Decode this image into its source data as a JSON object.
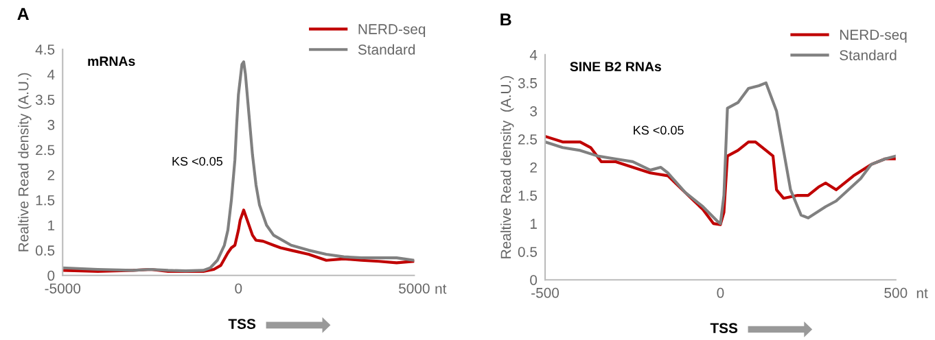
{
  "chart_data": [
    {
      "type": "line",
      "title": "mRNAs",
      "xlabel": "nt",
      "ylabel": "Realtive Read density (A.U.)",
      "annotations": [
        "A",
        "KS <0.05",
        "TSS"
      ],
      "xlim": [
        -5000,
        5000
      ],
      "xticks": [
        -5000,
        0,
        5000
      ],
      "ylim": [
        0,
        4.5
      ],
      "yticks": [
        0,
        0.5,
        1,
        1.5,
        2,
        2.5,
        3,
        3.5,
        4,
        4.5
      ],
      "grid": false,
      "legend": "top right",
      "marker": "none",
      "line_style": "solid",
      "series": [
        {
          "name": "NERD-seq",
          "color": "#c00000",
          "x": [
            -5000,
            -4000,
            -3000,
            -2500,
            -2000,
            -1500,
            -1000,
            -700,
            -500,
            -300,
            -200,
            -100,
            0,
            50,
            150,
            250,
            400,
            500,
            700,
            1000,
            1200,
            1500,
            2000,
            2500,
            3000,
            3500,
            4000,
            4500,
            5000
          ],
          "values": [
            0.1,
            0.08,
            0.1,
            0.12,
            0.08,
            0.08,
            0.08,
            0.12,
            0.2,
            0.45,
            0.55,
            0.6,
            0.9,
            1.1,
            1.3,
            1.1,
            0.8,
            0.7,
            0.68,
            0.6,
            0.55,
            0.5,
            0.42,
            0.3,
            0.33,
            0.3,
            0.28,
            0.25,
            0.28
          ]
        },
        {
          "name": "Standard",
          "color": "#808080",
          "x": [
            -5000,
            -4000,
            -3000,
            -2500,
            -2000,
            -1500,
            -1000,
            -800,
            -600,
            -400,
            -300,
            -200,
            -100,
            -50,
            0,
            100,
            150,
            200,
            300,
            400,
            500,
            600,
            800,
            1000,
            1500,
            2000,
            2500,
            3000,
            3500,
            4000,
            4500,
            5000
          ],
          "values": [
            0.15,
            0.12,
            0.1,
            0.12,
            0.1,
            0.09,
            0.1,
            0.15,
            0.3,
            0.6,
            0.9,
            1.5,
            2.3,
            3.0,
            3.6,
            4.2,
            4.25,
            4.0,
            3.2,
            2.4,
            1.8,
            1.4,
            1.0,
            0.8,
            0.6,
            0.5,
            0.42,
            0.37,
            0.35,
            0.35,
            0.35,
            0.3
          ]
        }
      ]
    },
    {
      "type": "line",
      "title": "SINE B2 RNAs",
      "xlabel": "nt",
      "ylabel": "Realtive Read density  (A.U.)",
      "annotations": [
        "B",
        "KS <0.05",
        "TSS"
      ],
      "xlim": [
        -500,
        500
      ],
      "xticks": [
        -500,
        0,
        500
      ],
      "ylim": [
        0,
        4
      ],
      "yticks": [
        0,
        0.5,
        1,
        1.5,
        2,
        2.5,
        3,
        3.5,
        4
      ],
      "grid": false,
      "legend": "top right",
      "marker": "none",
      "line_style": "solid",
      "series": [
        {
          "name": "NERD-seq",
          "color": "#c00000",
          "x": [
            -500,
            -450,
            -400,
            -370,
            -340,
            -300,
            -250,
            -200,
            -150,
            -100,
            -50,
            -20,
            0,
            10,
            20,
            50,
            80,
            100,
            130,
            150,
            160,
            180,
            220,
            250,
            280,
            300,
            330,
            380,
            430,
            470,
            500
          ],
          "values": [
            2.55,
            2.45,
            2.45,
            2.35,
            2.1,
            2.1,
            2.0,
            1.9,
            1.85,
            1.55,
            1.25,
            1.0,
            0.98,
            1.2,
            2.2,
            2.3,
            2.45,
            2.45,
            2.3,
            2.2,
            1.6,
            1.45,
            1.5,
            1.5,
            1.65,
            1.72,
            1.6,
            1.85,
            2.05,
            2.15,
            2.15
          ]
        },
        {
          "name": "Standard",
          "color": "#808080",
          "x": [
            -500,
            -450,
            -400,
            -350,
            -300,
            -250,
            -200,
            -170,
            -150,
            -100,
            -50,
            -10,
            0,
            10,
            20,
            50,
            80,
            110,
            130,
            160,
            200,
            230,
            250,
            300,
            330,
            400,
            430,
            470,
            500
          ],
          "values": [
            2.45,
            2.35,
            2.3,
            2.2,
            2.15,
            2.1,
            1.95,
            2.0,
            1.9,
            1.55,
            1.3,
            1.05,
            1.0,
            1.5,
            3.05,
            3.15,
            3.4,
            3.45,
            3.5,
            3.0,
            1.6,
            1.15,
            1.1,
            1.3,
            1.4,
            1.8,
            2.05,
            2.15,
            2.2
          ]
        }
      ]
    }
  ]
}
